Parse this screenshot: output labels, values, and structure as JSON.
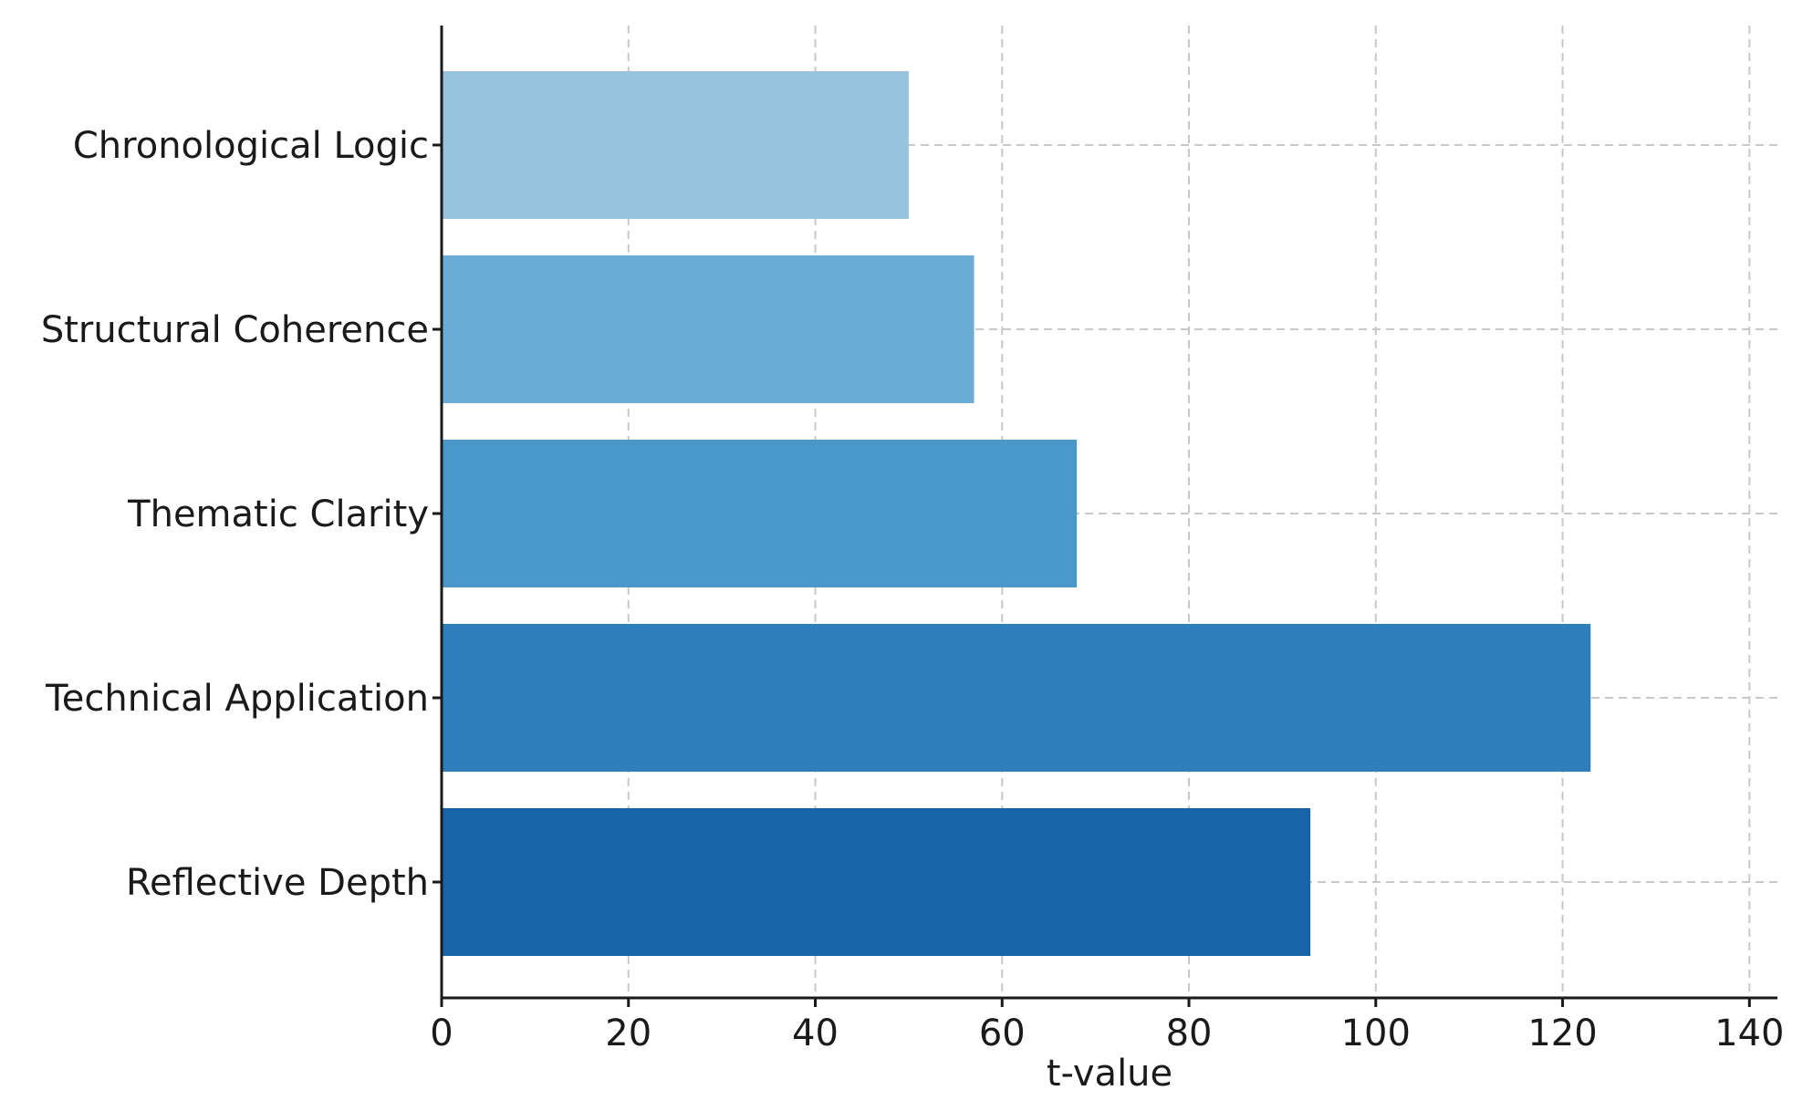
{
  "chart_data": {
    "type": "bar",
    "orientation": "horizontal",
    "categories": [
      "Chronological Logic",
      "Structural Coherence",
      "Thematic Clarity",
      "Technical Application",
      "Reflective Depth"
    ],
    "values": [
      50,
      57,
      68,
      123,
      93
    ],
    "colors": [
      "#97c3df",
      "#6aadd5",
      "#4a97c9",
      "#2e7ebc",
      "#1864aa"
    ],
    "title": "",
    "xlabel": "t-value",
    "ylabel": "",
    "xlim": [
      0,
      143
    ],
    "xticks": [
      0,
      20,
      40,
      60,
      80,
      100,
      120,
      140
    ],
    "xtick_labels": [
      "0",
      "20",
      "40",
      "60",
      "80",
      "100",
      "120",
      "140"
    ],
    "grid": true,
    "grid_style": "dashed"
  }
}
